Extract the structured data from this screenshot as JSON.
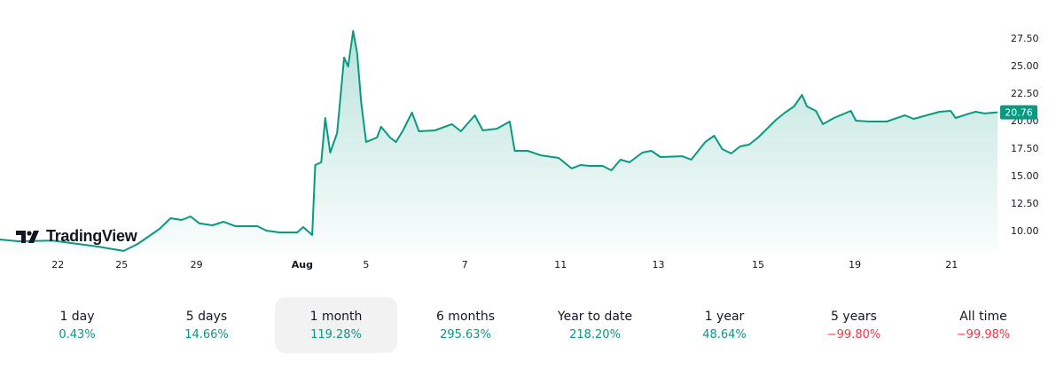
{
  "brand": "TradingView",
  "colors": {
    "line": "#089981",
    "positive": "#089981",
    "negative": "#f23645",
    "price_label_bg": "#089981"
  },
  "chart_data": {
    "type": "area",
    "x_unit": "chart position (0 = start of month window, 100 = latest)",
    "x_ticks": [
      {
        "t": 5.8,
        "label": "22",
        "bold": false
      },
      {
        "t": 12.2,
        "label": "25",
        "bold": false
      },
      {
        "t": 19.7,
        "label": "29",
        "bold": false
      },
      {
        "t": 30.3,
        "label": "Aug",
        "bold": true
      },
      {
        "t": 36.7,
        "label": "5",
        "bold": false
      },
      {
        "t": 46.6,
        "label": "7",
        "bold": false
      },
      {
        "t": 56.2,
        "label": "11",
        "bold": false
      },
      {
        "t": 66.0,
        "label": "13",
        "bold": false
      },
      {
        "t": 76.0,
        "label": "15",
        "bold": false
      },
      {
        "t": 85.7,
        "label": "19",
        "bold": false
      },
      {
        "t": 95.4,
        "label": "21",
        "bold": false
      }
    ],
    "y_ticks": [
      "10.00",
      "12.50",
      "15.00",
      "17.50",
      "20.00",
      "22.50",
      "25.00",
      "27.50"
    ],
    "ylim": [
      7.5,
      29
    ],
    "last_price": "20.76",
    "points": [
      [
        0,
        9.19
      ],
      [
        1.8,
        9.03
      ],
      [
        5.3,
        9.1
      ],
      [
        9.8,
        8.55
      ],
      [
        12.4,
        8.15
      ],
      [
        13.8,
        8.79
      ],
      [
        15.1,
        9.6
      ],
      [
        16,
        10.16
      ],
      [
        17.1,
        11.13
      ],
      [
        18.2,
        10.97
      ],
      [
        19.1,
        11.29
      ],
      [
        20,
        10.65
      ],
      [
        21.3,
        10.48
      ],
      [
        22.4,
        10.81
      ],
      [
        23.6,
        10.4
      ],
      [
        25.8,
        10.4
      ],
      [
        26.7,
        10.0
      ],
      [
        28,
        9.84
      ],
      [
        29.8,
        9.84
      ],
      [
        30.4,
        10.32
      ],
      [
        31.3,
        9.6
      ],
      [
        31.6,
        15.97
      ],
      [
        32.2,
        16.21
      ],
      [
        32.6,
        20.24
      ],
      [
        33.1,
        17.1
      ],
      [
        33.8,
        18.87
      ],
      [
        34.5,
        25.73
      ],
      [
        34.9,
        24.92
      ],
      [
        35.4,
        28.15
      ],
      [
        35.8,
        26.13
      ],
      [
        36.2,
        21.69
      ],
      [
        36.7,
        18.06
      ],
      [
        37.8,
        18.47
      ],
      [
        38.2,
        19.44
      ],
      [
        39.1,
        18.47
      ],
      [
        39.7,
        18.06
      ],
      [
        40.4,
        19.11
      ],
      [
        41.3,
        20.73
      ],
      [
        42,
        19.03
      ],
      [
        43.6,
        19.11
      ],
      [
        45.3,
        19.68
      ],
      [
        46.2,
        19.03
      ],
      [
        47.6,
        20.48
      ],
      [
        48.4,
        19.11
      ],
      [
        49.8,
        19.27
      ],
      [
        51.1,
        19.92
      ],
      [
        51.6,
        17.26
      ],
      [
        52.9,
        17.26
      ],
      [
        54.2,
        16.85
      ],
      [
        56,
        16.61
      ],
      [
        57.3,
        15.65
      ],
      [
        58.2,
        15.97
      ],
      [
        59.1,
        15.89
      ],
      [
        60.4,
        15.89
      ],
      [
        61.3,
        15.48
      ],
      [
        62.2,
        16.45
      ],
      [
        63.1,
        16.21
      ],
      [
        64.4,
        17.1
      ],
      [
        65.3,
        17.26
      ],
      [
        66.2,
        16.69
      ],
      [
        68.4,
        16.77
      ],
      [
        69.3,
        16.45
      ],
      [
        70.7,
        18.06
      ],
      [
        71.6,
        18.63
      ],
      [
        72.4,
        17.42
      ],
      [
        73.3,
        17.02
      ],
      [
        74.2,
        17.66
      ],
      [
        75.1,
        17.82
      ],
      [
        76,
        18.47
      ],
      [
        76.9,
        19.27
      ],
      [
        77.8,
        20.08
      ],
      [
        78.7,
        20.73
      ],
      [
        79.6,
        21.29
      ],
      [
        80.4,
        22.34
      ],
      [
        80.9,
        21.29
      ],
      [
        81.8,
        20.89
      ],
      [
        82.5,
        19.68
      ],
      [
        83.6,
        20.24
      ],
      [
        85.3,
        20.89
      ],
      [
        85.8,
        20.0
      ],
      [
        87.1,
        19.92
      ],
      [
        88.9,
        19.92
      ],
      [
        90.7,
        20.48
      ],
      [
        91.6,
        20.16
      ],
      [
        92.9,
        20.48
      ],
      [
        94.2,
        20.81
      ],
      [
        95.3,
        20.89
      ],
      [
        95.8,
        20.24
      ],
      [
        96.9,
        20.57
      ],
      [
        97.8,
        20.81
      ],
      [
        98.7,
        20.65
      ],
      [
        100,
        20.76
      ]
    ]
  },
  "periods": [
    {
      "label": "1 day",
      "value": "0.43%",
      "sign": "positive",
      "active": false
    },
    {
      "label": "5 days",
      "value": "14.66%",
      "sign": "positive",
      "active": false
    },
    {
      "label": "1 month",
      "value": "119.28%",
      "sign": "positive",
      "active": true
    },
    {
      "label": "6 months",
      "value": "295.63%",
      "sign": "positive",
      "active": false
    },
    {
      "label": "Year to date",
      "value": "218.20%",
      "sign": "positive",
      "active": false
    },
    {
      "label": "1 year",
      "value": "48.64%",
      "sign": "positive",
      "active": false
    },
    {
      "label": "5 years",
      "value": "−99.80%",
      "sign": "negative",
      "active": false
    },
    {
      "label": "All time",
      "value": "−99.98%",
      "sign": "negative",
      "active": false
    }
  ]
}
